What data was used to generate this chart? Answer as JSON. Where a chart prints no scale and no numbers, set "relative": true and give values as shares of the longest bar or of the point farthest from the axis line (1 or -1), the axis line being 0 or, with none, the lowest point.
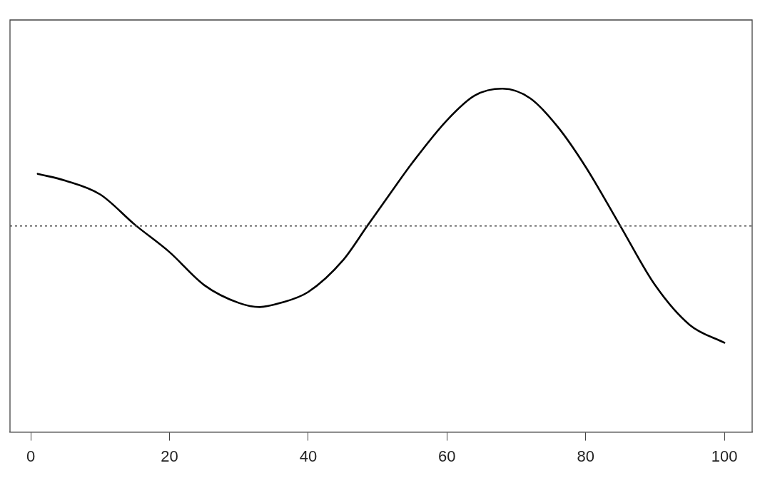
{
  "chart_data": {
    "type": "line",
    "relative": true,
    "x": [
      1,
      5,
      10,
      15,
      20,
      25,
      30,
      33,
      36,
      40,
      45,
      48.5,
      52,
      55,
      60,
      64,
      68,
      72,
      76,
      80,
      85,
      90,
      95,
      100
    ],
    "series": [
      {
        "color": "#000000",
        "values": [
          0.38,
          0.33,
          0.23,
          0.01,
          -0.19,
          -0.43,
          -0.56,
          -0.59,
          -0.56,
          -0.48,
          -0.25,
          0,
          0.25,
          0.46,
          0.77,
          0.95,
          1,
          0.93,
          0.72,
          0.43,
          0,
          -0.43,
          -0.72,
          -0.85
        ]
      }
    ],
    "xlim": [
      -3,
      104
    ],
    "xticks": [
      0,
      20,
      40,
      60,
      80,
      100
    ],
    "grid": false,
    "legend": false,
    "marker": "none",
    "line_style": "solid",
    "ref_lines": [
      {
        "axis": "y",
        "value": 0,
        "color": "#444444",
        "line_style": "dotted"
      }
    ]
  }
}
